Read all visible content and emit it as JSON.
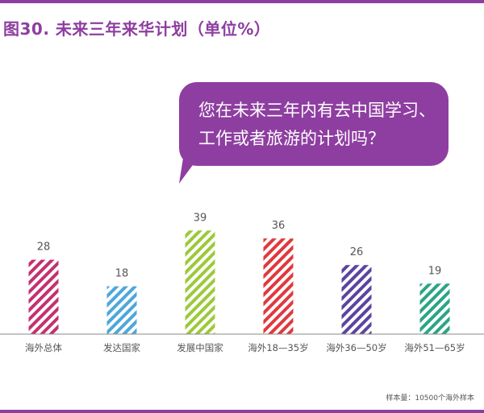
{
  "title": "图30. 未来三年来华计划（单位%）",
  "question": {
    "lines": [
      "您在未来三年内有去中国学习、",
      "工作或者旅游的计划吗？"
    ]
  },
  "footnote": "样本量：10500个海外样本",
  "colors": {
    "accent": "#8E3EA0",
    "title_text": "#8E3EA0",
    "axis": "#888888",
    "labels": "#555555"
  },
  "chart_data": {
    "type": "bar",
    "categories": [
      "海外总体",
      "发达国家",
      "发展中国家",
      "海外18—35岁",
      "海外36—50岁",
      "海外51—65岁"
    ],
    "values": [
      28,
      18,
      39,
      36,
      26,
      19
    ],
    "bar_colors": [
      "#C4316F",
      "#4DA7DB",
      "#9CC93A",
      "#E0393E",
      "#5A44A0",
      "#2BA585"
    ],
    "bar_fill": "diagonal-stripes",
    "value_labels": true,
    "ylim": [
      0,
      40
    ],
    "xlabel": "",
    "ylabel": "",
    "grid": false,
    "legend": "none"
  }
}
